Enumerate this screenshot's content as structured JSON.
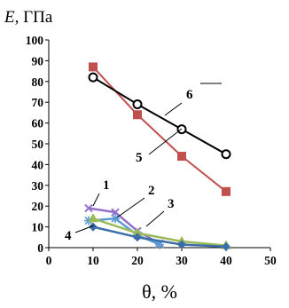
{
  "chart_data": {
    "type": "line",
    "ylabel_symbol": "E",
    "ylabel_unit": ", ГПа",
    "xlabel": "θ, %",
    "xlim": [
      0,
      50
    ],
    "ylim": [
      0,
      100
    ],
    "x_ticks": [
      "0",
      "10",
      "20",
      "30",
      "40",
      "50"
    ],
    "y_ticks": [
      "0",
      "10",
      "20",
      "30",
      "40",
      "50",
      "60",
      "70",
      "80",
      "90",
      "100"
    ],
    "grid": false,
    "series": [
      {
        "name": "1",
        "color": "#9370c8",
        "marker": "x",
        "x": [
          9,
          15,
          20,
          25
        ],
        "y": [
          19,
          17,
          8,
          2
        ]
      },
      {
        "name": "2",
        "color": "#5b9bd5",
        "marker": "star",
        "x": [
          9,
          15,
          20,
          25
        ],
        "y": [
          13,
          14,
          6,
          1.5
        ]
      },
      {
        "name": "3",
        "color": "#9bbb59",
        "marker": "triangle",
        "x": [
          10,
          20,
          30,
          40
        ],
        "y": [
          14,
          7,
          3,
          1
        ]
      },
      {
        "name": "4",
        "color": "#3b6ea8",
        "marker": "diamond",
        "x": [
          10,
          20,
          30,
          40
        ],
        "y": [
          10,
          5,
          1.5,
          0.5
        ]
      },
      {
        "name": "5",
        "color": "#c0504d",
        "marker": "square",
        "x": [
          10,
          20,
          30,
          40
        ],
        "y": [
          87,
          64,
          44,
          27
        ]
      },
      {
        "name": "6",
        "color": "#000000",
        "marker": "circle-open",
        "x": [
          10,
          20,
          30,
          40
        ],
        "y": [
          82,
          69,
          57,
          45
        ]
      }
    ]
  }
}
